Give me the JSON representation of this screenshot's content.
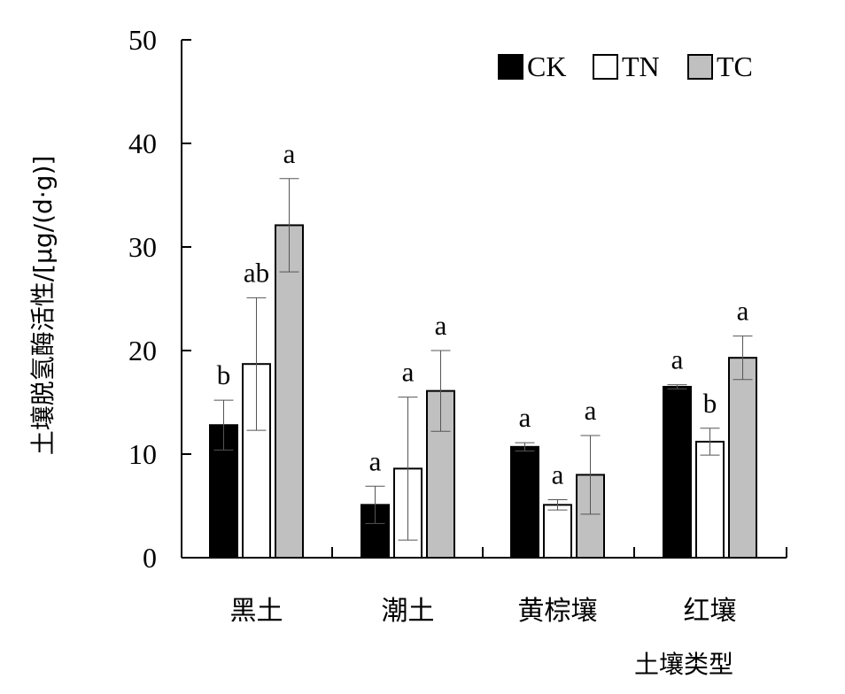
{
  "chart_data": {
    "type": "bar",
    "title": "",
    "xlabel": "土壤类型",
    "ylabel": "土壤脱氢酶活性/[μg/(d·g)]",
    "ylim": [
      0,
      50
    ],
    "yticks": [
      "0",
      "10",
      "20",
      "30",
      "40",
      "50"
    ],
    "categories": [
      "黑土",
      "潮土",
      "黄棕壤",
      "红壤"
    ],
    "legend_position": "top-right",
    "grid": false,
    "series": [
      {
        "name": "CK",
        "color": "#000000",
        "values": [
          12.8,
          5.1,
          10.7,
          16.5
        ],
        "errors": [
          2.4,
          1.8,
          0.4,
          0.2
        ],
        "significance": [
          "b",
          "a",
          "a",
          "a"
        ]
      },
      {
        "name": "TN",
        "color": "#ffffff",
        "values": [
          18.7,
          8.6,
          5.1,
          11.2
        ],
        "errors": [
          6.4,
          6.9,
          0.5,
          1.3
        ],
        "significance": [
          "ab",
          "a",
          "a",
          "b"
        ]
      },
      {
        "name": "TC",
        "color": "#c0c0c0",
        "values": [
          32.1,
          16.1,
          8.0,
          19.3
        ],
        "errors": [
          4.5,
          3.9,
          3.8,
          2.1
        ],
        "significance": [
          "a",
          "a",
          "a",
          "a"
        ]
      }
    ]
  }
}
